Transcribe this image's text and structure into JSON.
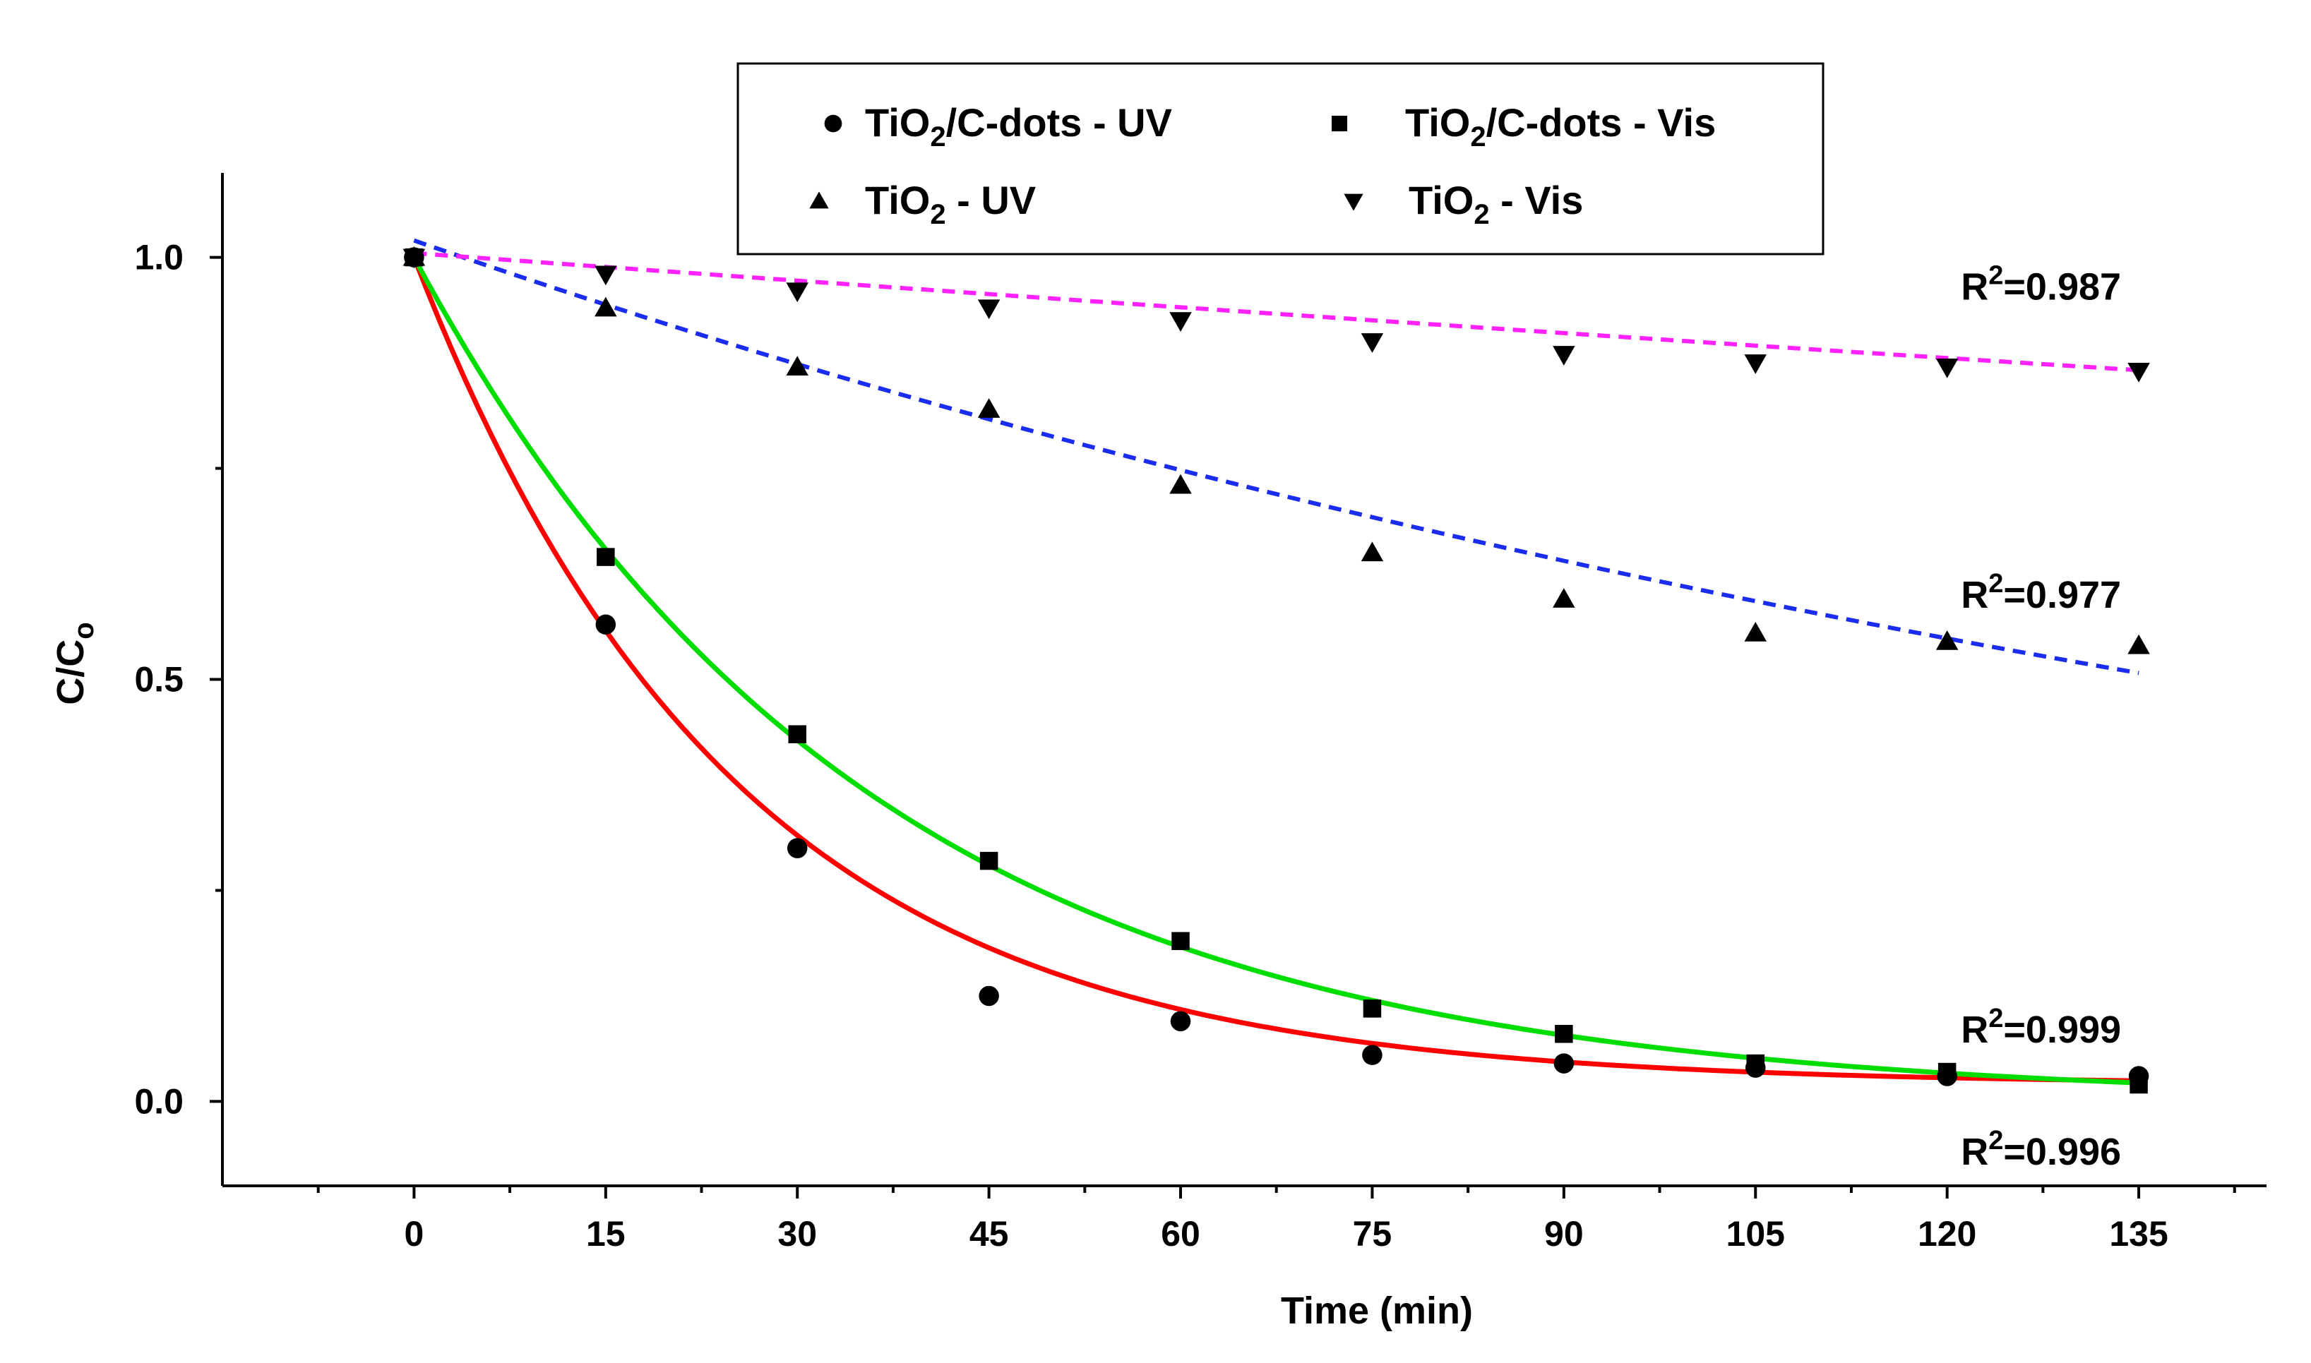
{
  "chart_data": {
    "type": "scatter",
    "xlabel": "Time (min)",
    "ylabel_main": "C/C",
    "ylabel_sub": "o",
    "xlim": [
      -15,
      145
    ],
    "ylim": [
      -0.1,
      1.1
    ],
    "x_ticks": [
      0,
      15,
      30,
      45,
      60,
      75,
      90,
      105,
      120,
      135
    ],
    "x_tick_labels": [
      "0",
      "15",
      "30",
      "45",
      "60",
      "75",
      "90",
      "105",
      "120",
      "135"
    ],
    "y_ticks": [
      0.0,
      0.5,
      1.0
    ],
    "y_tick_labels": [
      "0.0",
      "0.5",
      "1.0"
    ],
    "x": [
      0,
      15,
      30,
      45,
      60,
      75,
      90,
      105,
      120,
      135
    ],
    "series": [
      {
        "id": "tio2cd-uv",
        "name_parts": [
          "TiO",
          "2",
          "/C-dots - UV"
        ],
        "marker": "circle",
        "values": [
          1.0,
          0.565,
          0.3,
          0.125,
          0.095,
          0.055,
          0.045,
          0.04,
          0.03,
          0.03
        ],
        "fit": {
          "type": "exp",
          "k": 0.04,
          "y0": 0.02,
          "color": "#ff0000",
          "dashed": false
        },
        "r2_value": "0.996",
        "r2_anchor": [
          135,
          -0.06
        ]
      },
      {
        "id": "tio2cd-vis",
        "name_parts": [
          "TiO",
          "2",
          "/C-dots - Vis"
        ],
        "marker": "square",
        "values": [
          1.0,
          0.645,
          0.435,
          0.285,
          0.19,
          0.11,
          0.08,
          0.045,
          0.035,
          0.02
        ],
        "fit": {
          "type": "exp",
          "k": 0.0283,
          "y0": 0.0,
          "color": "#00dd00",
          "dashed": false
        },
        "r2_value": "0.999",
        "r2_anchor": [
          135,
          0.085
        ]
      },
      {
        "id": "tio2-uv",
        "name_parts": [
          "TiO",
          "2",
          " - UV"
        ],
        "marker": "triangle-up",
        "values": [
          1.0,
          0.94,
          0.87,
          0.82,
          0.73,
          0.65,
          0.595,
          0.555,
          0.545,
          0.54
        ],
        "fit": {
          "type": "exp",
          "k": 0.00517,
          "y0": 0.0,
          "a": 1.02,
          "color": "#1a2cf0",
          "dashed": true
        },
        "r2_value": "0.977",
        "r2_anchor": [
          135,
          0.6
        ]
      },
      {
        "id": "tio2-vis",
        "name_parts": [
          "TiO",
          "2",
          " - Vis"
        ],
        "marker": "triangle-down",
        "values": [
          1.0,
          0.98,
          0.96,
          0.94,
          0.925,
          0.9,
          0.885,
          0.875,
          0.87,
          0.865
        ],
        "fit": {
          "type": "exp",
          "k": 0.0011,
          "y0": 0.0,
          "a": 1.005,
          "color": "#ff22ff",
          "dashed": true
        },
        "r2_value": "0.987",
        "r2_anchor": [
          135,
          0.965
        ]
      }
    ],
    "r2_label": "R",
    "r2_exponent": "2",
    "legend_position": "top-center"
  }
}
